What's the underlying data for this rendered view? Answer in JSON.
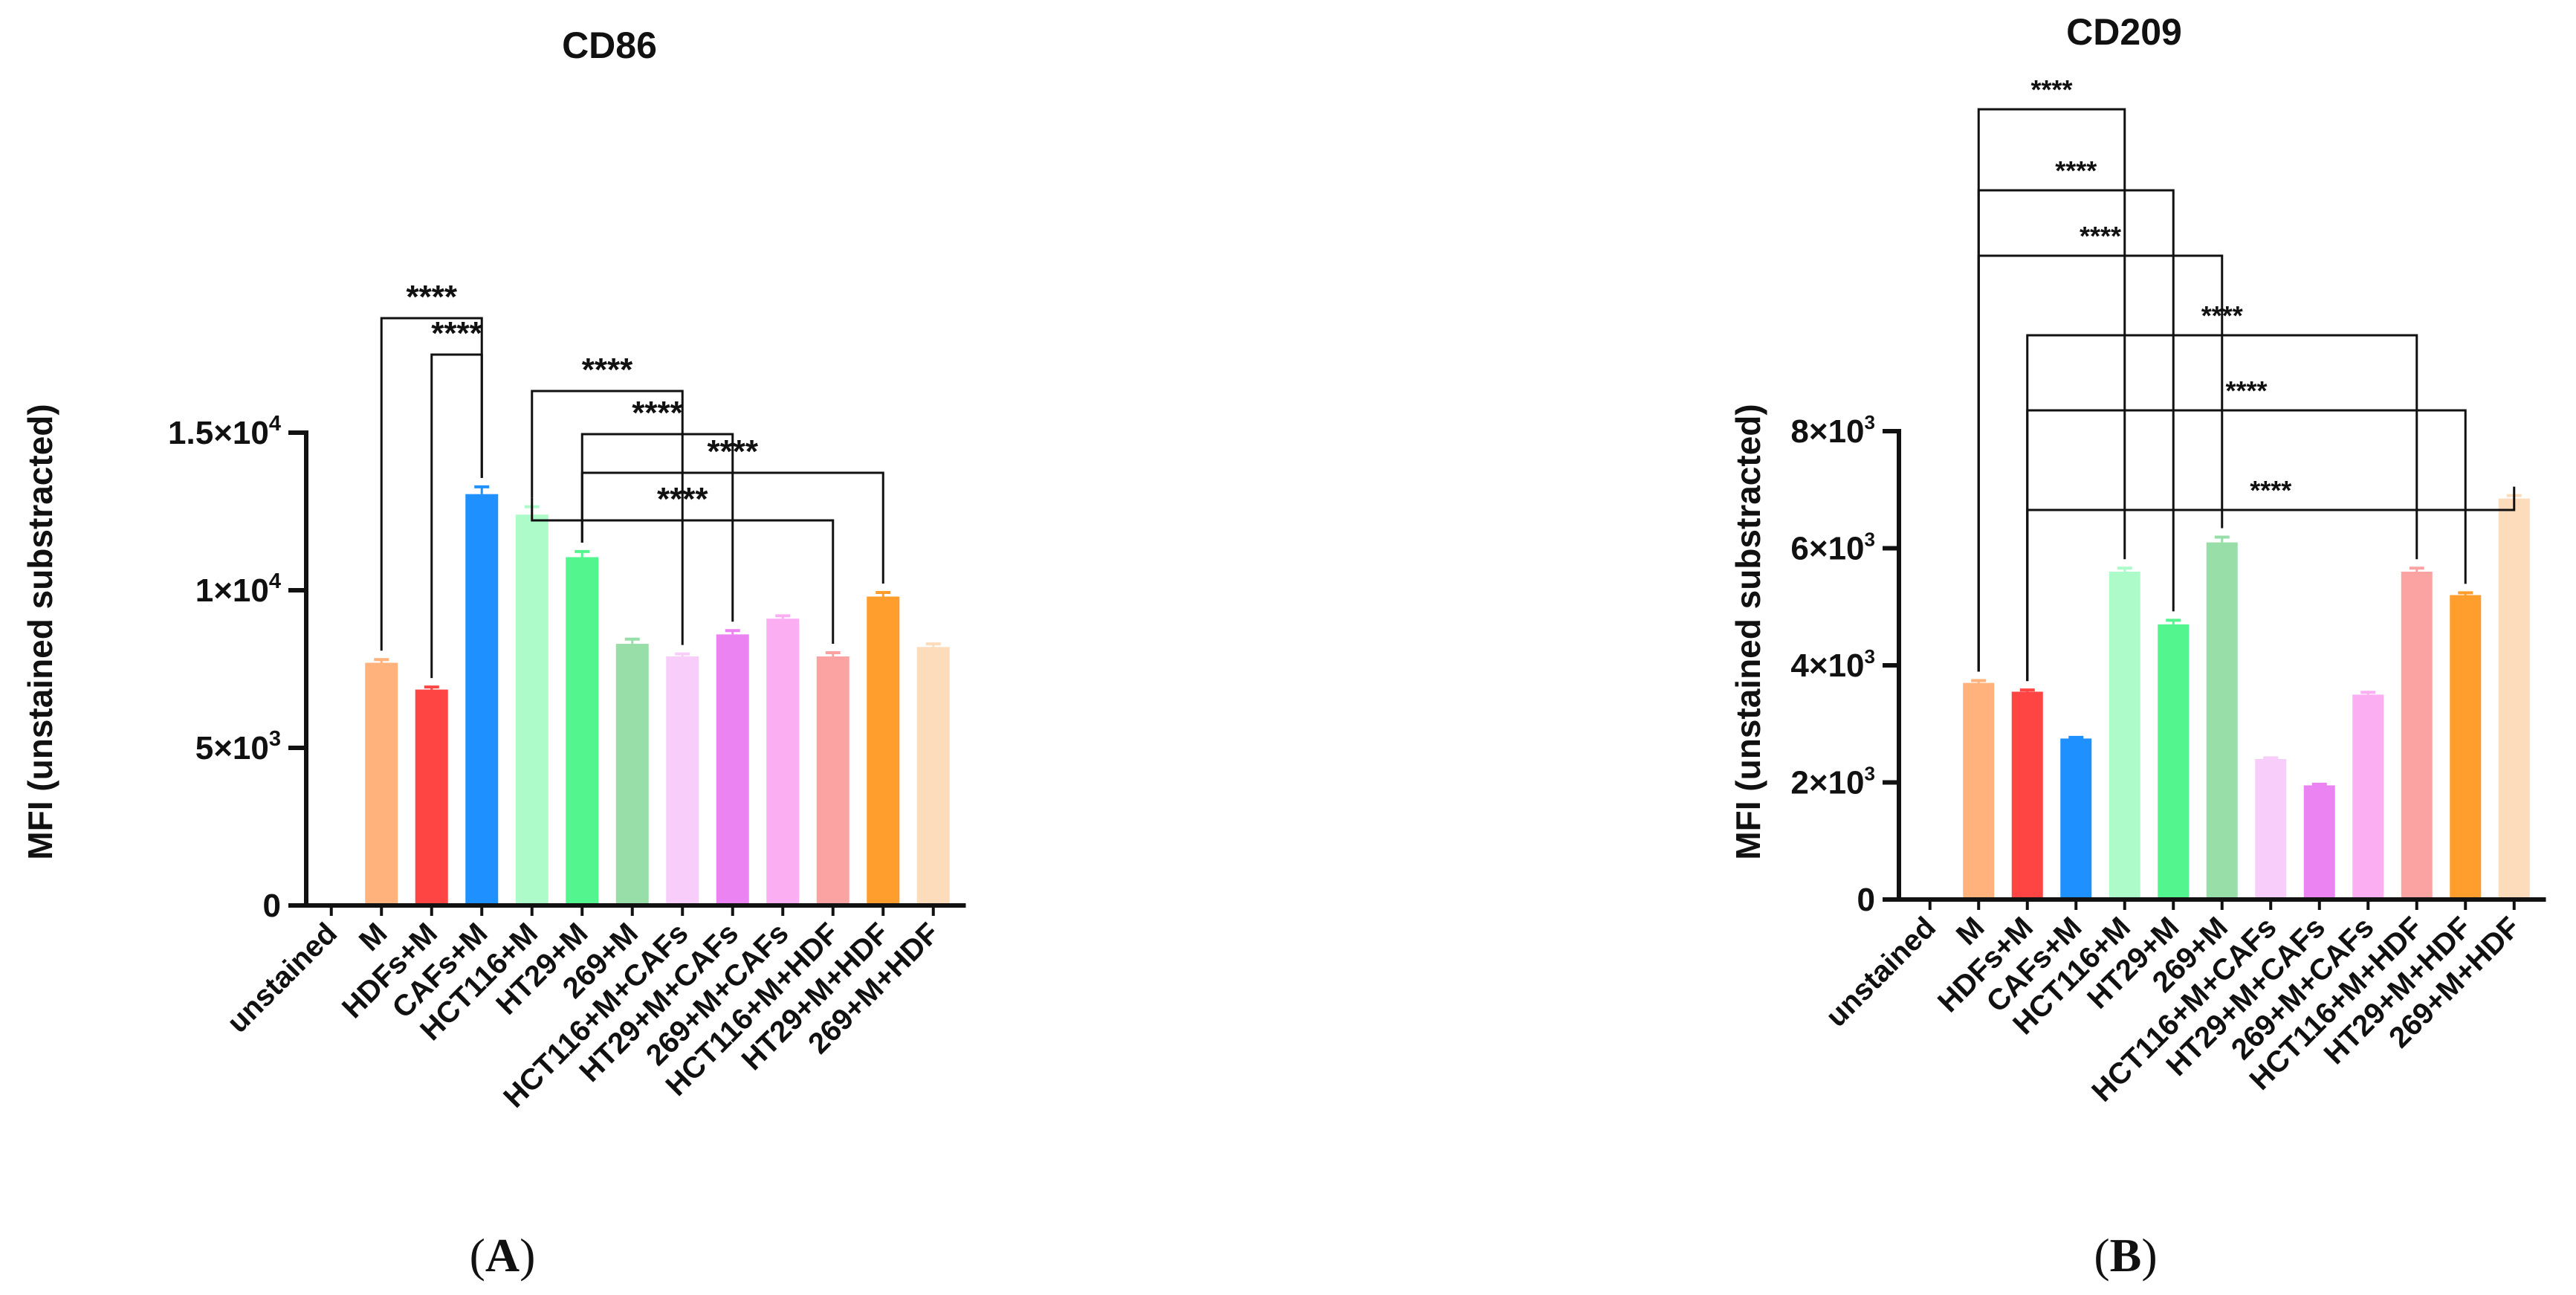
{
  "chart_data": [
    {
      "type": "bar",
      "title": "CD86",
      "ylabel": "MFI (unstained substracted)",
      "xlabel": "",
      "ylim": [
        0,
        15000
      ],
      "yticks": [
        {
          "value": 0,
          "label_base": "0",
          "label_exp": ""
        },
        {
          "value": 5000,
          "label_base": "5×10",
          "label_exp": "3"
        },
        {
          "value": 10000,
          "label_base": "1×10",
          "label_exp": "4"
        },
        {
          "value": 15000,
          "label_base": "1.5×10",
          "label_exp": "4"
        }
      ],
      "categories": [
        "unstained",
        "M",
        "HDFs+M",
        "CAFs+M",
        "HCT116+M",
        "HT29+M",
        "269+M",
        "HCT116+M+CAFs",
        "HT29+M+CAFs",
        "269+M+CAFs",
        "HCT116+M+HDF",
        "HT29+M+HDF",
        "269+M+HDF"
      ],
      "values": [
        0,
        7700,
        6850,
        13050,
        12400,
        11050,
        8300,
        7900,
        8600,
        9100,
        7900,
        9800,
        8200
      ],
      "errors": [
        0,
        100,
        80,
        230,
        250,
        180,
        150,
        80,
        120,
        90,
        120,
        130,
        100
      ],
      "colors": [
        "#ffffff",
        "#ffb27c",
        "#ff4444",
        "#1e90ff",
        "#adfbc9",
        "#52f58e",
        "#97dea8",
        "#f9cdf9",
        "#ec83f2",
        "#fbaef2",
        "#fba3a3",
        "#ff9d2d",
        "#fddcbc"
      ],
      "significance": [
        {
          "from": "M",
          "to": "CAFs+M",
          "label": "****"
        },
        {
          "from": "HDFs+M",
          "to": "CAFs+M",
          "label": "****"
        },
        {
          "from": "HCT116+M",
          "to": "HCT116+M+CAFs",
          "label": "****"
        },
        {
          "from": "HT29+M",
          "to": "HT29+M+CAFs",
          "label": "****"
        },
        {
          "from": "HT29+M",
          "to": "HT29+M+HDF",
          "label": "****"
        },
        {
          "from": "HCT116+M",
          "to": "HCT116+M+HDF",
          "label": "****"
        }
      ],
      "panel_label": "A"
    },
    {
      "type": "bar",
      "title": "CD209",
      "ylabel": "MFI (unstained substracted)",
      "xlabel": "",
      "ylim": [
        0,
        8000
      ],
      "yticks": [
        {
          "value": 0,
          "label_base": "0",
          "label_exp": ""
        },
        {
          "value": 2000,
          "label_base": "2×10",
          "label_exp": "3"
        },
        {
          "value": 4000,
          "label_base": "4×10",
          "label_exp": "3"
        },
        {
          "value": 6000,
          "label_base": "6×10",
          "label_exp": "3"
        },
        {
          "value": 8000,
          "label_base": "8×10",
          "label_exp": "3"
        }
      ],
      "categories": [
        "unstained",
        "M",
        "HDFs+M",
        "CAFs+M",
        "HCT116+M",
        "HT29+M",
        "269+M",
        "HCT116+M+CAFs",
        "HT29+M+CAFs",
        "269+M+CAFs",
        "HCT116+M+HDF",
        "HT29+M+HDF",
        "269+M+HDF"
      ],
      "values": [
        0,
        3700,
        3550,
        2750,
        5600,
        4700,
        6100,
        2400,
        1950,
        3500,
        5600,
        5200,
        6850
      ],
      "errors": [
        0,
        40,
        30,
        20,
        60,
        70,
        90,
        20,
        20,
        40,
        60,
        40,
        50
      ],
      "colors": [
        "#ffffff",
        "#ffb27c",
        "#ff4444",
        "#1e90ff",
        "#adfbc9",
        "#52f58e",
        "#97dea8",
        "#f9cdf9",
        "#ec83f2",
        "#fbaef2",
        "#fba3a3",
        "#ff9d2d",
        "#fddcbc"
      ],
      "significance": [
        {
          "from": "M",
          "to": "HCT116+M",
          "label": "****"
        },
        {
          "from": "M",
          "to": "HT29+M",
          "label": "****"
        },
        {
          "from": "M",
          "to": "269+M",
          "label": "****"
        },
        {
          "from": "HDFs+M",
          "to": "HCT116+M+HDF",
          "label": "****"
        },
        {
          "from": "HDFs+M",
          "to": "HT29+M+HDF",
          "label": "****"
        },
        {
          "from": "HDFs+M",
          "to": "269+M+HDF",
          "label": "****"
        }
      ],
      "panel_label": "B"
    }
  ]
}
